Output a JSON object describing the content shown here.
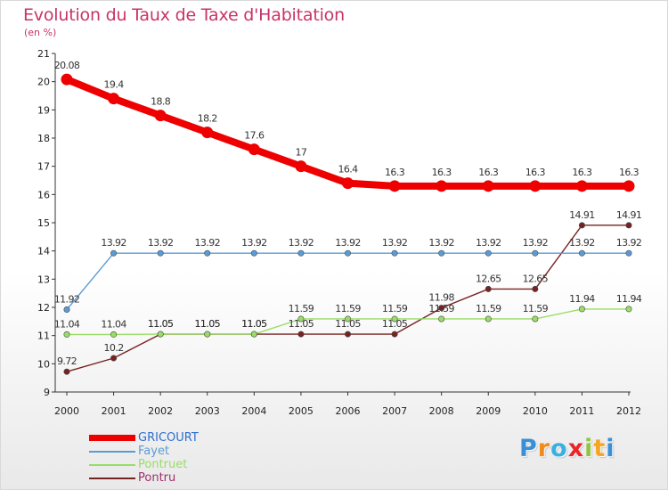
{
  "chart_data": {
    "type": "line",
    "title": "Evolution du Taux de Taxe d'Habitation",
    "subtitle": "(en %)",
    "x": [
      "2000",
      "2001",
      "2002",
      "2003",
      "2004",
      "2005",
      "2006",
      "2007",
      "2008",
      "2009",
      "2010",
      "2011",
      "2012"
    ],
    "ylim": [
      9,
      21
    ],
    "yticks": [
      "9",
      "10",
      "11",
      "12",
      "13",
      "14",
      "15",
      "16",
      "17",
      "18",
      "19",
      "20",
      "21"
    ],
    "grid": false,
    "legend_position": "bottom-left",
    "series": [
      {
        "name": "GRICOURT",
        "color": "#ee0000",
        "values": [
          20.08,
          19.4,
          18.8,
          18.2,
          17.6,
          17,
          16.4,
          16.3,
          16.3,
          16.3,
          16.3,
          16.3,
          16.3
        ],
        "labels": [
          "20.08",
          "19.4",
          "18.8",
          "18.2",
          "17.6",
          "17",
          "16.4",
          "16.3",
          "16.3",
          "16.3",
          "16.3",
          "16.3",
          "16.3"
        ]
      },
      {
        "name": "Fayet",
        "color": "#5b9bd5",
        "values": [
          11.92,
          13.92,
          13.92,
          13.92,
          13.92,
          13.92,
          13.92,
          13.92,
          13.92,
          13.92,
          13.92,
          13.92,
          13.92
        ],
        "labels": [
          "11.92",
          "13.92",
          "13.92",
          "13.92",
          "13.92",
          "13.92",
          "13.92",
          "13.92",
          "13.92",
          "13.92",
          "13.92",
          "13.92",
          "13.92"
        ]
      },
      {
        "name": "Pontruet",
        "color": "#99dd66",
        "values": [
          11.04,
          11.04,
          11.05,
          11.05,
          11.05,
          11.59,
          11.59,
          11.59,
          11.59,
          11.59,
          11.59,
          11.94,
          11.94
        ],
        "labels": [
          "11.04",
          "11.04",
          "11.05",
          "11.05",
          "11.05",
          "11.59",
          "11.59",
          "11.59",
          "11.59",
          "11.59",
          "11.59",
          "11.94",
          "11.94"
        ]
      },
      {
        "name": "Pontru",
        "color": "#772222",
        "values": [
          9.72,
          10.2,
          11.05,
          11.05,
          11.05,
          11.05,
          11.05,
          11.05,
          11.98,
          12.65,
          12.65,
          14.91,
          14.91
        ],
        "labels": [
          "9.72",
          "10.2",
          "11.05",
          "11.05",
          "11.05",
          "11.05",
          "11.05",
          "11.05",
          "11.98",
          "12.65",
          "12.65",
          "14.91",
          "14.91"
        ]
      }
    ]
  },
  "logo": {
    "letters": [
      "P",
      "r",
      "o",
      "x",
      "i",
      "t",
      "i"
    ],
    "colors": [
      "#3b8fd6",
      "#f08a1c",
      "#3bb0e0",
      "#e8262a",
      "#8fc63f",
      "#f4a623",
      "#3b8fd6"
    ]
  }
}
